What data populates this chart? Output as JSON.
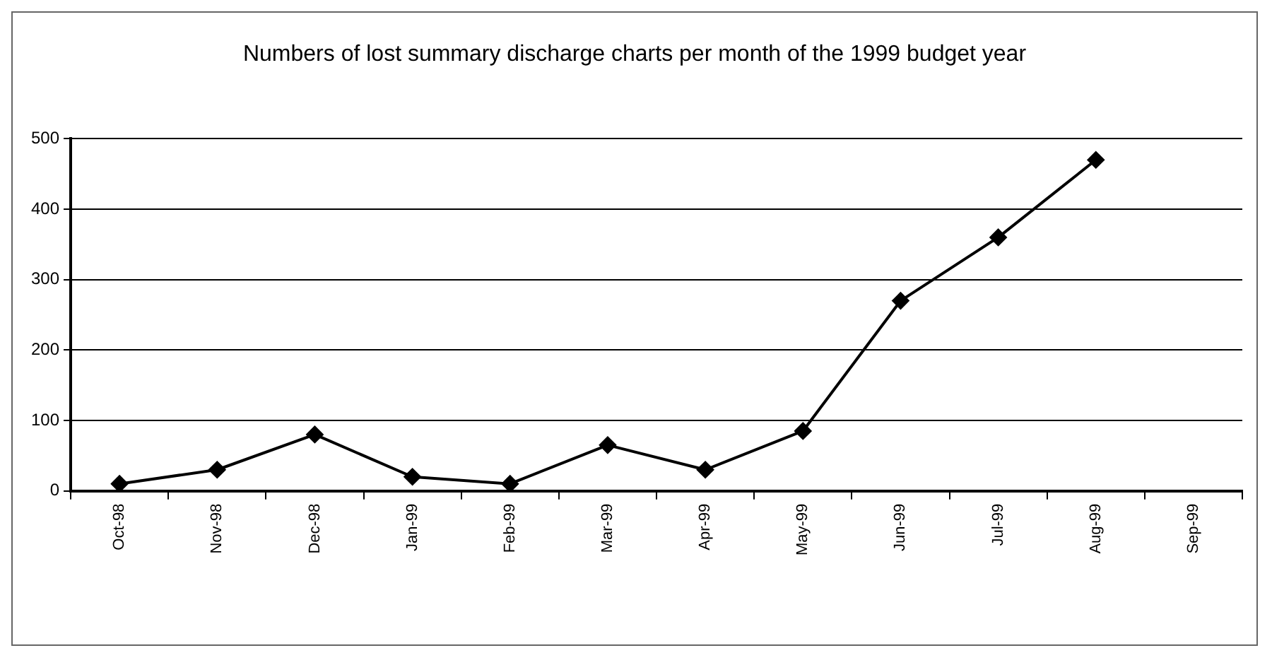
{
  "chart_data": {
    "type": "line",
    "title": "Numbers of lost summary discharge charts per month of the 1999 budget year",
    "categories": [
      "Oct-98",
      "Nov-98",
      "Dec-98",
      "Jan-99",
      "Feb-99",
      "Mar-99",
      "Apr-99",
      "May-99",
      "Jun-99",
      "Jul-99",
      "Aug-99",
      "Sep-99"
    ],
    "series": [
      {
        "color": "#000000",
        "values": [
          10,
          30,
          80,
          20,
          10,
          65,
          30,
          85,
          270,
          360,
          470,
          null
        ]
      }
    ],
    "ylim": [
      0,
      500
    ],
    "yticks": [
      0,
      100,
      200,
      300,
      400,
      500
    ],
    "grid": "y",
    "legend": false,
    "marker": "diamond",
    "line_style": "solid"
  }
}
